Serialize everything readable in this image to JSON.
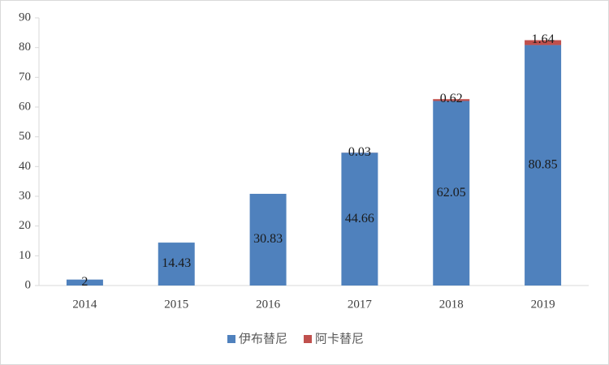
{
  "chart_data": {
    "type": "stacked-bar",
    "categories": [
      "2014",
      "2015",
      "2016",
      "2017",
      "2018",
      "2019"
    ],
    "series": [
      {
        "name": "伊布替尼",
        "color": "#4f81bd",
        "values": [
          2,
          14.43,
          30.83,
          44.66,
          62.05,
          80.85
        ]
      },
      {
        "name": "阿卡替尼",
        "color": "#c0504d",
        "values": [
          null,
          null,
          null,
          0.03,
          0.62,
          1.64
        ]
      }
    ],
    "ylim": [
      0,
      90
    ],
    "yticks": [
      0,
      10,
      20,
      30,
      40,
      50,
      60,
      70,
      80,
      90
    ],
    "grid": false,
    "legend": "bottom"
  }
}
